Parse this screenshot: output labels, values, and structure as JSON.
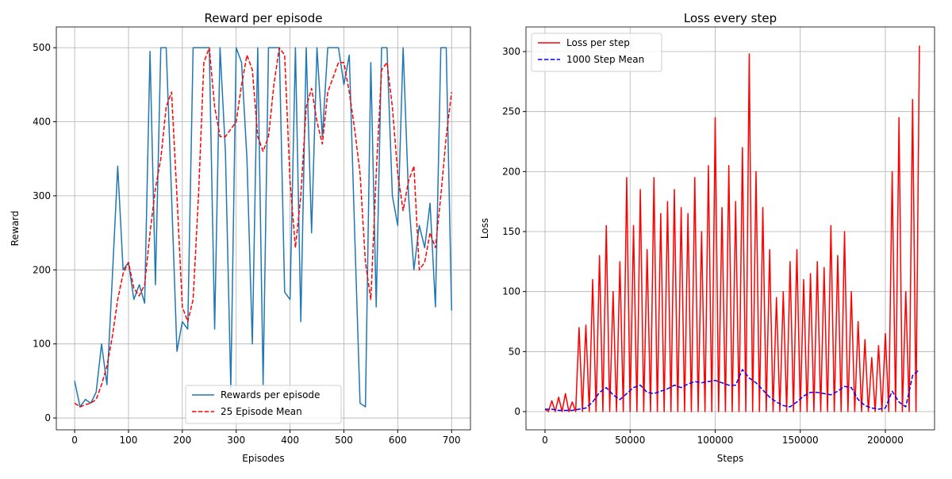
{
  "chart_data": [
    {
      "type": "line",
      "title": "Reward per episode",
      "x_label": "Episodes",
      "y_label": "Reward",
      "x": [
        0,
        10,
        20,
        30,
        40,
        50,
        60,
        70,
        80,
        90,
        100,
        110,
        120,
        130,
        140,
        150,
        160,
        170,
        180,
        190,
        200,
        210,
        220,
        230,
        240,
        250,
        260,
        270,
        280,
        290,
        300,
        310,
        320,
        330,
        340,
        350,
        360,
        370,
        380,
        390,
        400,
        410,
        420,
        430,
        440,
        450,
        460,
        470,
        480,
        490,
        500,
        510,
        520,
        530,
        540,
        550,
        560,
        570,
        580,
        590,
        600,
        610,
        620,
        630,
        640,
        650,
        660,
        670,
        680,
        690,
        700
      ],
      "series": [
        {
          "name": "Rewards per episode",
          "color": "#1f77b4",
          "linestyle": "solid",
          "values": [
            50,
            15,
            25,
            20,
            35,
            100,
            45,
            190,
            340,
            200,
            210,
            160,
            180,
            155,
            495,
            180,
            500,
            500,
            300,
            90,
            130,
            120,
            500,
            500,
            500,
            500,
            120,
            500,
            360,
            40,
            500,
            480,
            350,
            100,
            500,
            45,
            500,
            500,
            500,
            170,
            160,
            500,
            130,
            500,
            250,
            500,
            380,
            500,
            500,
            500,
            450,
            490,
            250,
            20,
            15,
            480,
            150,
            500,
            500,
            300,
            260,
            500,
            300,
            200,
            260,
            230,
            290,
            150,
            500,
            500,
            145
          ]
        },
        {
          "name": "25 Episode Mean",
          "color": "#ff0000",
          "linestyle": "dashed",
          "values": [
            20,
            15,
            18,
            20,
            25,
            45,
            70,
            110,
            160,
            195,
            210,
            175,
            165,
            180,
            250,
            310,
            350,
            420,
            440,
            300,
            150,
            130,
            160,
            300,
            480,
            500,
            420,
            380,
            380,
            390,
            400,
            450,
            490,
            470,
            380,
            360,
            380,
            450,
            500,
            490,
            320,
            230,
            300,
            420,
            445,
            400,
            370,
            440,
            460,
            480,
            480,
            440,
            390,
            330,
            210,
            160,
            330,
            470,
            480,
            420,
            330,
            280,
            320,
            340,
            200,
            210,
            250,
            230,
            300,
            380,
            440
          ]
        }
      ],
      "xlim": [
        -34,
        735
      ],
      "ylim": [
        -16,
        528
      ],
      "xticks": [
        0,
        100,
        200,
        300,
        400,
        500,
        600,
        700
      ],
      "yticks": [
        0,
        100,
        200,
        300,
        400,
        500
      ],
      "grid": true,
      "legend": "lower center"
    },
    {
      "type": "line",
      "title": "Loss every step",
      "x_label": "Steps",
      "y_label": "Loss",
      "series": [
        {
          "name": "Loss per step",
          "color": "#ff0000",
          "linestyle": "solid",
          "x": [
            0,
            2000,
            4000,
            6000,
            8000,
            10000,
            12000,
            14000,
            16000,
            18000,
            20000,
            22000,
            24000,
            26000,
            28000,
            30000,
            32000,
            34000,
            36000,
            38000,
            40000,
            42000,
            44000,
            46000,
            48000,
            50000,
            52000,
            54000,
            56000,
            58000,
            60000,
            62000,
            64000,
            66000,
            68000,
            70000,
            72000,
            74000,
            76000,
            78000,
            80000,
            82000,
            84000,
            86000,
            88000,
            90000,
            92000,
            94000,
            96000,
            98000,
            100000,
            102000,
            104000,
            106000,
            108000,
            110000,
            112000,
            114000,
            116000,
            118000,
            120000,
            122000,
            124000,
            126000,
            128000,
            130000,
            132000,
            134000,
            136000,
            138000,
            140000,
            142000,
            144000,
            146000,
            148000,
            150000,
            152000,
            154000,
            156000,
            158000,
            160000,
            162000,
            164000,
            166000,
            168000,
            170000,
            172000,
            174000,
            176000,
            178000,
            180000,
            182000,
            184000,
            186000,
            188000,
            190000,
            192000,
            194000,
            196000,
            198000,
            200000,
            202000,
            204000,
            206000,
            208000,
            210000,
            212000,
            214000,
            216000,
            218000,
            220000
          ],
          "values": [
            2,
            0,
            9,
            0,
            12,
            0,
            15,
            0,
            8,
            0,
            70,
            0,
            72,
            0,
            110,
            0,
            130,
            0,
            155,
            0,
            100,
            0,
            125,
            0,
            195,
            0,
            155,
            0,
            185,
            0,
            135,
            0,
            195,
            0,
            165,
            0,
            175,
            0,
            185,
            0,
            170,
            0,
            165,
            0,
            195,
            0,
            150,
            0,
            205,
            0,
            245,
            0,
            170,
            0,
            205,
            0,
            175,
            0,
            220,
            0,
            298,
            0,
            200,
            0,
            170,
            0,
            135,
            0,
            95,
            0,
            100,
            0,
            125,
            0,
            135,
            0,
            110,
            0,
            115,
            0,
            125,
            0,
            120,
            0,
            155,
            0,
            130,
            0,
            150,
            0,
            100,
            0,
            75,
            0,
            60,
            0,
            45,
            0,
            55,
            0,
            65,
            0,
            200,
            0,
            245,
            0,
            100,
            0,
            260,
            0,
            305
          ]
        },
        {
          "name": "1000 Step Mean",
          "color": "#0000ff",
          "linestyle": "dashed",
          "x": [
            0,
            4000,
            8000,
            12000,
            16000,
            20000,
            24000,
            28000,
            32000,
            36000,
            40000,
            44000,
            48000,
            52000,
            56000,
            60000,
            64000,
            68000,
            72000,
            76000,
            80000,
            84000,
            88000,
            92000,
            96000,
            100000,
            104000,
            108000,
            112000,
            116000,
            120000,
            124000,
            128000,
            132000,
            136000,
            140000,
            144000,
            148000,
            152000,
            156000,
            160000,
            164000,
            168000,
            172000,
            176000,
            180000,
            184000,
            188000,
            192000,
            196000,
            200000,
            204000,
            208000,
            212000,
            216000,
            220000
          ],
          "values": [
            2,
            2,
            1,
            1,
            1,
            2,
            3,
            8,
            16,
            20,
            14,
            10,
            15,
            20,
            22,
            16,
            15,
            17,
            19,
            22,
            20,
            23,
            25,
            24,
            25,
            26,
            24,
            22,
            22,
            35,
            28,
            24,
            18,
            12,
            8,
            5,
            4,
            8,
            13,
            16,
            16,
            15,
            14,
            17,
            21,
            20,
            10,
            5,
            3,
            2,
            3,
            17,
            8,
            4,
            30,
            35
          ]
        }
      ],
      "xlim": [
        -11190,
        228900
      ],
      "ylim": [
        -15.2,
        320.5
      ],
      "xticks": [
        0,
        50000,
        100000,
        150000,
        200000
      ],
      "yticks": [
        0,
        50,
        100,
        150,
        200,
        250,
        300
      ],
      "grid": true,
      "legend": "upper left"
    }
  ]
}
